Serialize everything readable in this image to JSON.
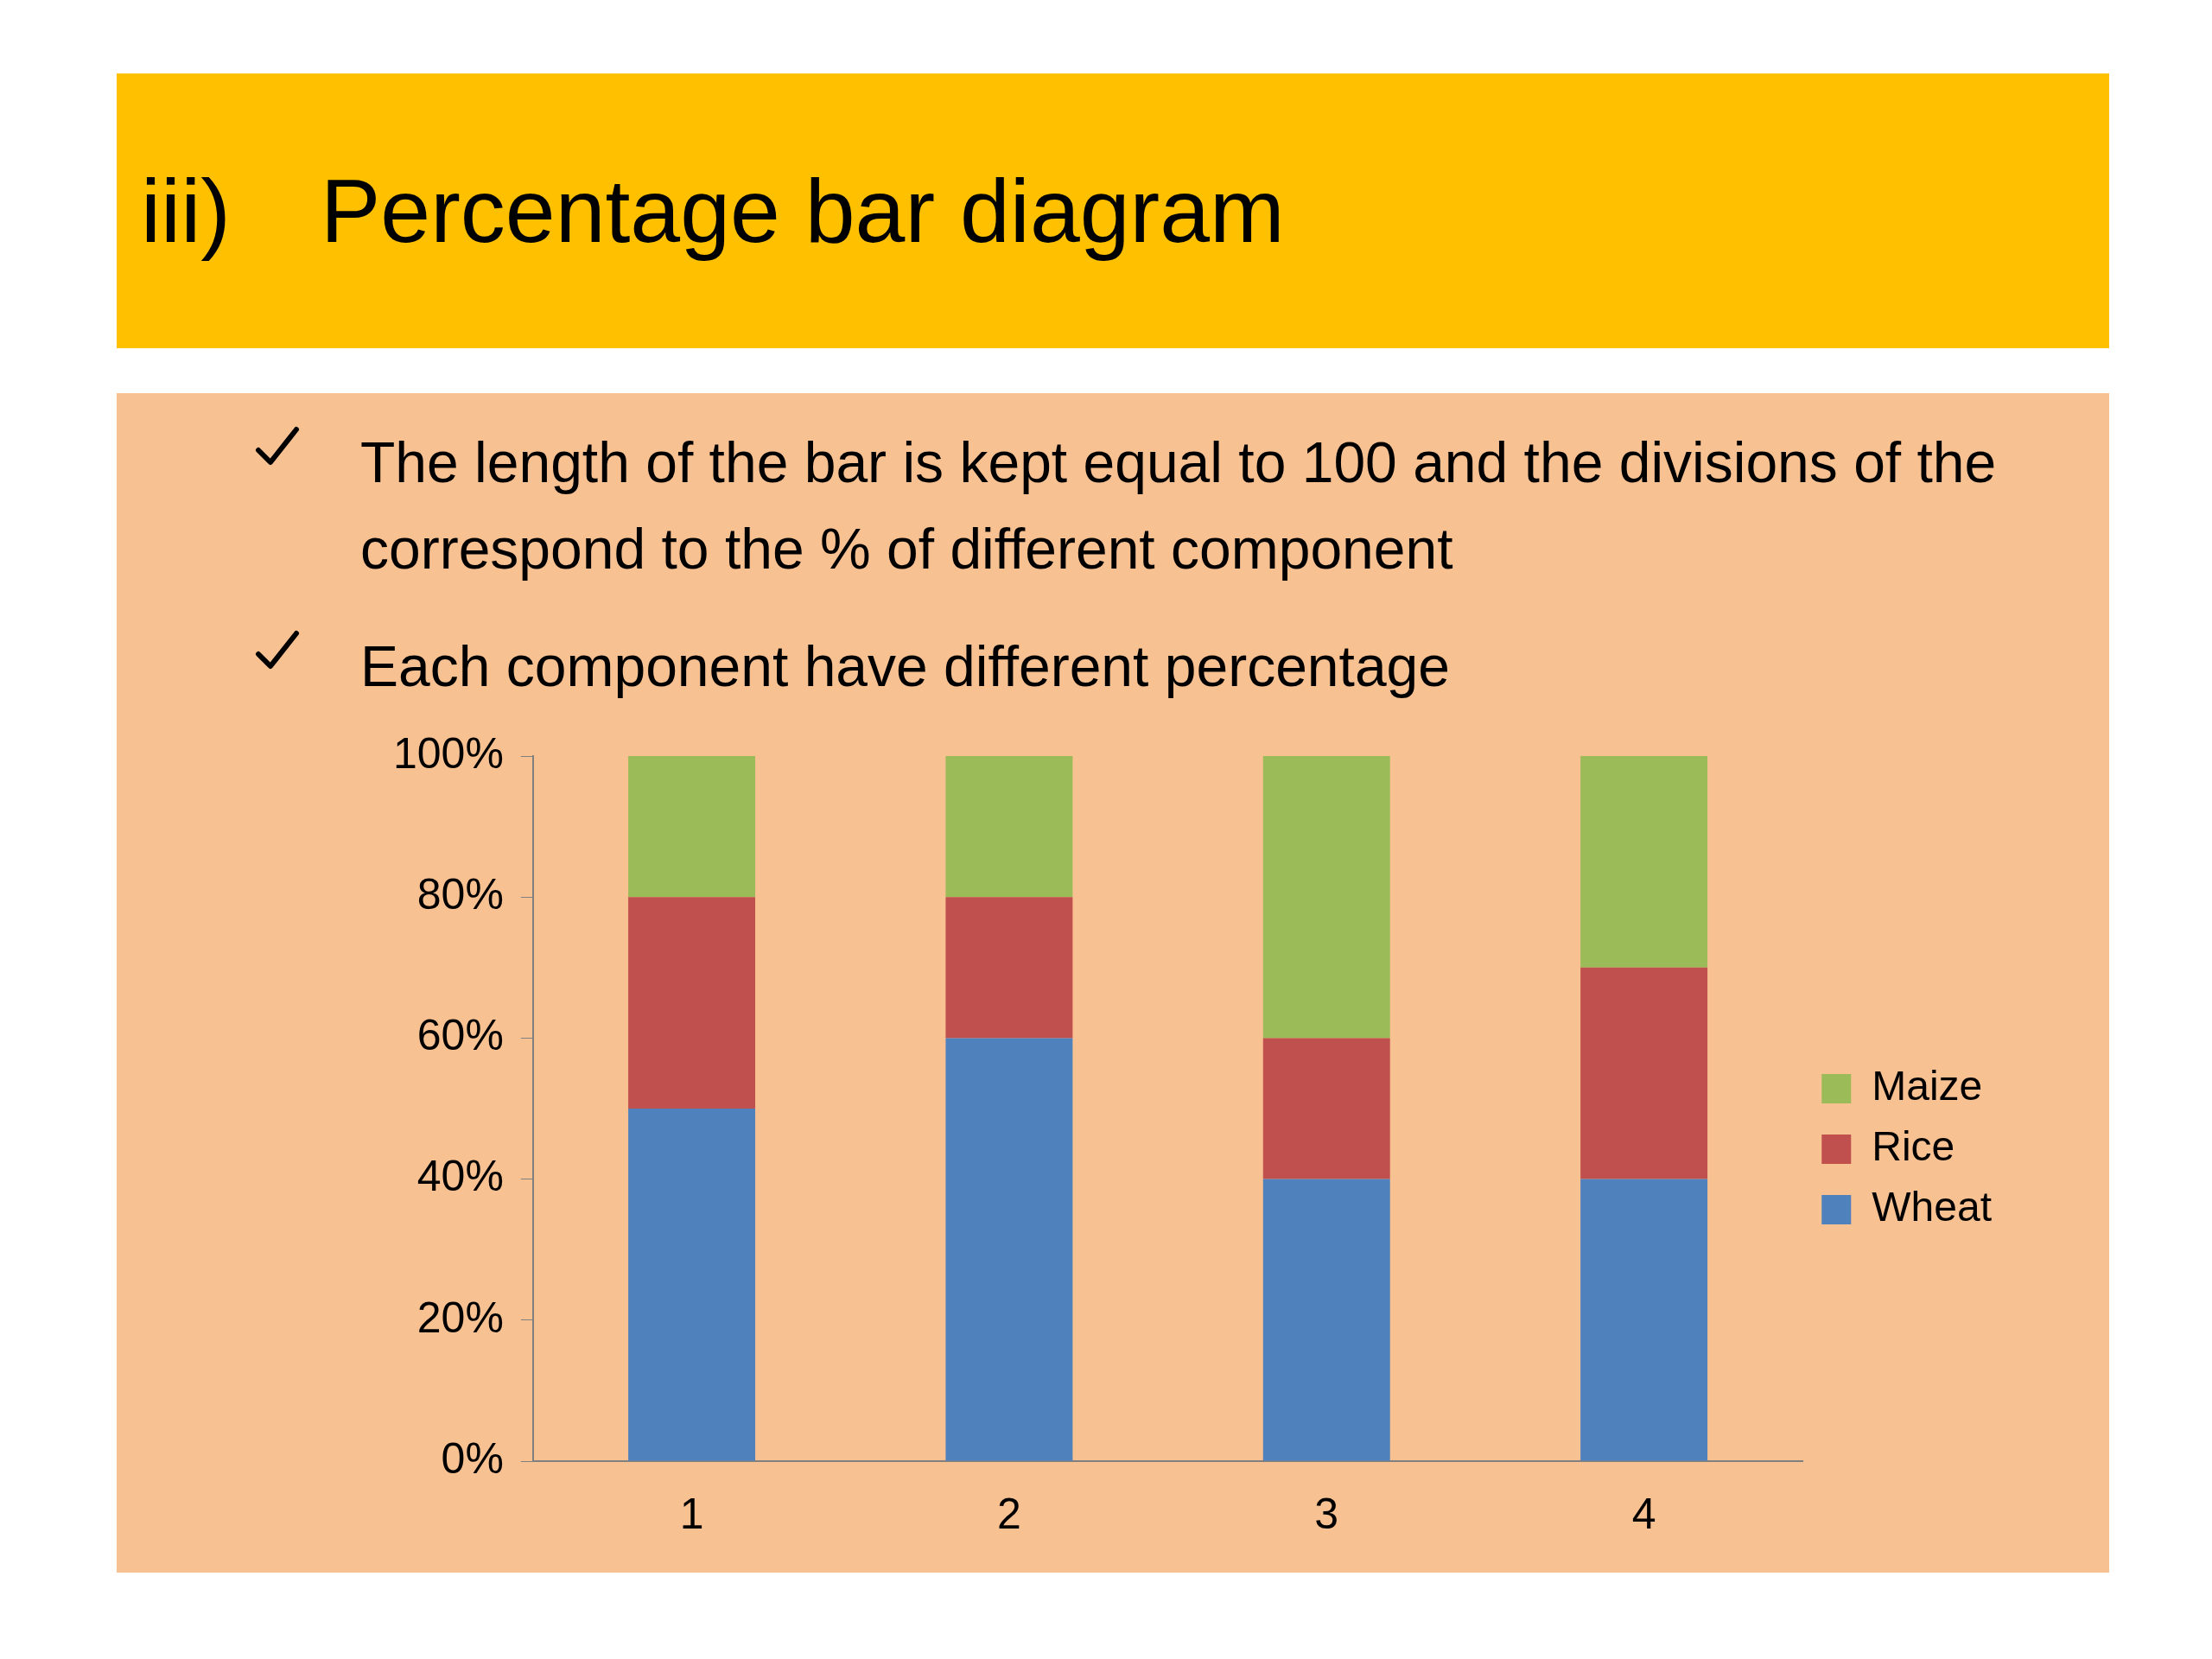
{
  "chart_data": {
    "type": "bar",
    "title": "iii) Percentage bar diagram",
    "annotations": [
      "The length of the bar is kept equal to 100 and the divisions of the correspond to the % of different component",
      "Each component have different percentage"
    ],
    "categories": [
      "1",
      "2",
      "3",
      "4"
    ],
    "series": [
      {
        "name": "Wheat",
        "color": "#4f81bd",
        "values": [
          50,
          60,
          40,
          40
        ]
      },
      {
        "name": "Rice",
        "color": "#c0504d",
        "values": [
          30,
          20,
          20,
          30
        ]
      },
      {
        "name": "Maize",
        "color": "#9bbb59",
        "values": [
          20,
          20,
          40,
          30
        ]
      }
    ],
    "stacked": true,
    "ylim": [
      0,
      100
    ],
    "yticks": [
      {
        "value": 0,
        "label": "0%"
      },
      {
        "value": 20,
        "label": "20%"
      },
      {
        "value": 40,
        "label": "40%"
      },
      {
        "value": 60,
        "label": "60%"
      },
      {
        "value": 80,
        "label": "80%"
      },
      {
        "value": 100,
        "label": "100%"
      }
    ],
    "grid": false,
    "legend": "right"
  }
}
